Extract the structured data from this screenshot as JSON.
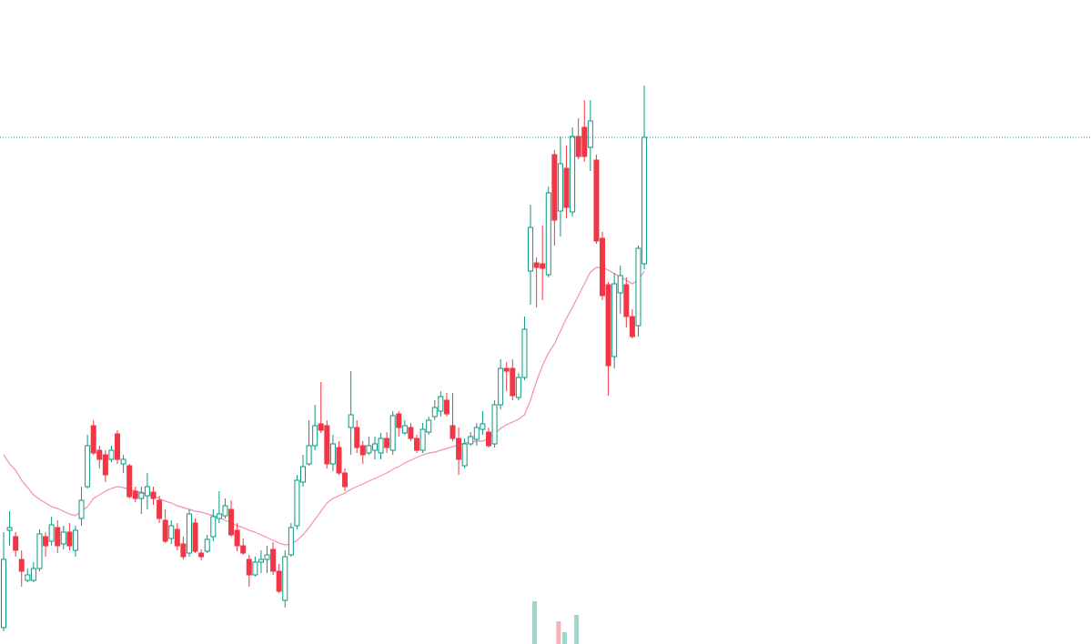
{
  "chart_data": {
    "type": "candlestick",
    "open": [
      18,
      125,
      118,
      93,
      70,
      70,
      83,
      118,
      113,
      128,
      110,
      123,
      103,
      138,
      173,
      240,
      213,
      208,
      203,
      231,
      198,
      196,
      168,
      160,
      163,
      167,
      158,
      136,
      116,
      126,
      110,
      100,
      133,
      100,
      102,
      118,
      138,
      141,
      148,
      125,
      108,
      93,
      76,
      90,
      93,
      104,
      80,
      48,
      98,
      130,
      178,
      198,
      218,
      242,
      240,
      198,
      216,
      188,
      238,
      238,
      218,
      210,
      213,
      210,
      226,
      213,
      253,
      232,
      238,
      226,
      213,
      233,
      250,
      256,
      268,
      240,
      226,
      196,
      220,
      225,
      236,
      233,
      220,
      263,
      303,
      303,
      271,
      293,
      410,
      419,
      418,
      406,
      538,
      476,
      523,
      475,
      558,
      568,
      546,
      532,
      446,
      395,
      316,
      386,
      395,
      360,
      350,
      418
    ],
    "high": [
      123,
      146,
      123,
      103,
      83,
      90,
      126,
      123,
      140,
      136,
      130,
      133,
      130,
      173,
      230,
      246,
      218,
      213,
      218,
      235,
      208,
      198,
      173,
      173,
      188,
      173,
      163,
      148,
      136,
      133,
      118,
      148,
      138,
      104,
      120,
      148,
      168,
      160,
      158,
      133,
      116,
      98,
      96,
      103,
      108,
      112,
      88,
      103,
      133,
      186,
      208,
      246,
      263,
      288,
      246,
      230,
      223,
      193,
      300,
      246,
      223,
      228,
      228,
      232,
      233,
      256,
      256,
      246,
      243,
      230,
      243,
      250,
      268,
      278,
      276,
      276,
      238,
      226,
      233,
      243,
      256,
      238,
      268,
      313,
      310,
      313,
      298,
      360,
      483,
      425,
      460,
      503,
      543,
      558,
      548,
      568,
      578,
      598,
      598,
      538,
      453,
      398,
      408,
      416,
      403,
      368,
      438,
      614
    ],
    "low": [
      14,
      108,
      96,
      63,
      68,
      68,
      80,
      96,
      108,
      100,
      104,
      103,
      96,
      130,
      171,
      208,
      193,
      178,
      200,
      198,
      188,
      160,
      156,
      143,
      148,
      153,
      133,
      111,
      110,
      103,
      93,
      96,
      100,
      92,
      100,
      113,
      133,
      138,
      118,
      102,
      98,
      63,
      74,
      78,
      78,
      76,
      56,
      40,
      96,
      126,
      173,
      196,
      213,
      232,
      193,
      190,
      186,
      168,
      208,
      210,
      198,
      208,
      203,
      203,
      210,
      208,
      228,
      230,
      223,
      210,
      210,
      230,
      246,
      250,
      250,
      223,
      186,
      193,
      218,
      218,
      230,
      216,
      216,
      258,
      278,
      268,
      268,
      290,
      373,
      370,
      378,
      403,
      438,
      448,
      468,
      470,
      533,
      530,
      520,
      440,
      378,
      273,
      303,
      363,
      348,
      336,
      338,
      412
    ],
    "close": [
      93,
      128,
      103,
      80,
      76,
      83,
      121,
      108,
      131,
      108,
      123,
      108,
      125,
      158,
      218,
      210,
      203,
      186,
      213,
      203,
      203,
      162,
      160,
      166,
      173,
      160,
      138,
      113,
      130,
      108,
      96,
      143,
      102,
      96,
      115,
      140,
      143,
      152,
      120,
      108,
      100,
      76,
      90,
      93,
      98,
      80,
      58,
      96,
      128,
      180,
      195,
      218,
      240,
      235,
      198,
      220,
      188,
      173,
      252,
      216,
      208,
      218,
      220,
      226,
      216,
      251,
      238,
      240,
      226,
      213,
      236,
      246,
      260,
      272,
      253,
      226,
      203,
      220,
      228,
      238,
      242,
      218,
      263,
      303,
      300,
      273,
      293,
      346,
      458,
      414,
      413,
      496,
      466,
      528,
      480,
      558,
      536,
      536,
      575,
      443,
      383,
      306,
      396,
      405,
      360,
      338,
      435,
      557
    ],
    "ma": {
      "color": "#f48fb1",
      "values": [
        208,
        198,
        191,
        180,
        172,
        164,
        159,
        155,
        151,
        149,
        146,
        143,
        141,
        146,
        151,
        160,
        164,
        168,
        171,
        173,
        172,
        170,
        168,
        167,
        165,
        163,
        160,
        157,
        155,
        152,
        150,
        148,
        146,
        145,
        143,
        141,
        139,
        136,
        133,
        130,
        128,
        125,
        123,
        120,
        117,
        114,
        111,
        109,
        110,
        114,
        120,
        128,
        137,
        146,
        155,
        160,
        163,
        166,
        170,
        173,
        176,
        179,
        182,
        185,
        188,
        192,
        195,
        199,
        202,
        205,
        208,
        210,
        211,
        213,
        215,
        217,
        219,
        221,
        222,
        223,
        223,
        226,
        231,
        237,
        241,
        244,
        247,
        252,
        268,
        289,
        306,
        320,
        330,
        344,
        358,
        370,
        383,
        396,
        409,
        414,
        414,
        411,
        407,
        404,
        400,
        396,
        400,
        410
      ]
    },
    "volume": {
      "ylim": [
        0,
        100
      ],
      "values": [
        null,
        null,
        null,
        null,
        null,
        null,
        null,
        null,
        null,
        null,
        null,
        null,
        null,
        null,
        null,
        null,
        null,
        null,
        null,
        null,
        null,
        null,
        null,
        null,
        null,
        null,
        null,
        null,
        null,
        null,
        null,
        null,
        null,
        null,
        null,
        null,
        null,
        null,
        null,
        null,
        null,
        null,
        null,
        null,
        null,
        null,
        null,
        null,
        null,
        null,
        null,
        null,
        null,
        null,
        null,
        null,
        null,
        null,
        null,
        null,
        null,
        null,
        null,
        null,
        null,
        null,
        null,
        null,
        null,
        null,
        null,
        null,
        null,
        null,
        null,
        null,
        null,
        null,
        null,
        null,
        null,
        null,
        null,
        null,
        null,
        null,
        null,
        null,
        47,
        null,
        null,
        null,
        25,
        13,
        null,
        32,
        null,
        null,
        null,
        null,
        null,
        null,
        null,
        null,
        null,
        null,
        null,
        null
      ]
    },
    "up_color": "#089981",
    "down_color": "#f23645",
    "hollow_up": true,
    "last_price_line": true,
    "ylim": [
      0,
      708
    ],
    "grid": false
  }
}
